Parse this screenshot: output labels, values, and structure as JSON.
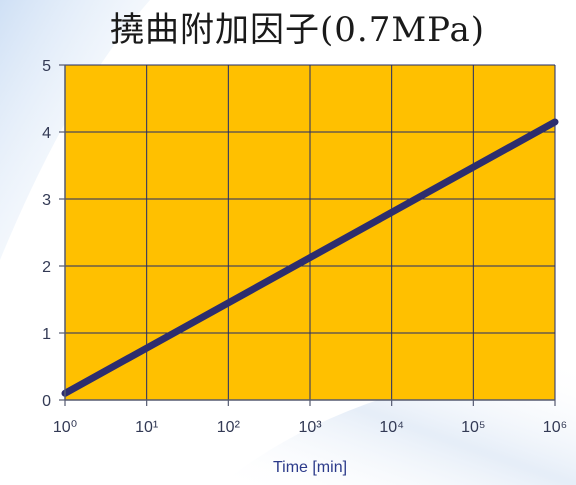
{
  "chart_data": {
    "type": "line",
    "title": "撓曲附加因子(0.7MPa)",
    "xlabel": "Time [min]",
    "ylabel": "",
    "x_scale": "log",
    "x_tick_labels": [
      "10⁰",
      "10¹",
      "10²",
      "10³",
      "10⁴",
      "10⁵",
      "10⁶"
    ],
    "y_tick_labels": [
      "0",
      "1",
      "2",
      "3",
      "4",
      "5"
    ],
    "xlim": [
      1,
      1000000
    ],
    "ylim": [
      0,
      5
    ],
    "grid": true,
    "series": [
      {
        "x": [
          1,
          1000000
        ],
        "y": [
          0.1,
          4.15
        ]
      }
    ],
    "colors": {
      "plot_background": "#FFC000",
      "grid": "#1f2a6b",
      "line": "#2d2d6e"
    }
  }
}
